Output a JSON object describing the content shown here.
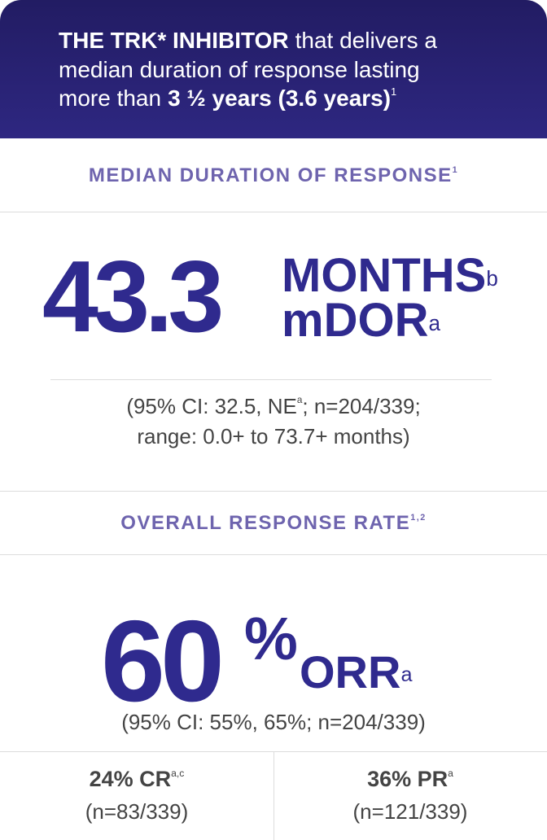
{
  "header": {
    "line1_bold": "THE TRK* INHIBITOR",
    "line1_text": "that delivers a",
    "line2": "median duration of response lasting",
    "line3_text": "more than",
    "line3_bold": "3 ½ years (3.6 years)",
    "line3_sup": "1"
  },
  "dor": {
    "title": "MEDIAN DURATION OF RESPONSE",
    "title_sup": "1",
    "value": "43.3",
    "unit": "MONTHS",
    "unit_sup": "b",
    "label": "mDOR",
    "label_sup": "a",
    "detail1_a": "(95% CI: 32.5, NE",
    "detail1_sup": "a",
    "detail1_b": "; n=204/339;",
    "detail2": "range: 0.0+ to 73.7+ months)"
  },
  "orr": {
    "title": "OVERALL RESPONSE RATE",
    "title_sup": "1,2",
    "value": "60",
    "percent": "%",
    "label": "ORR",
    "label_sup": "a",
    "detail": "(95% CI: 55%, 65%; n=204/339)"
  },
  "breakdown": [
    {
      "label": "24% CR",
      "sup": "a,c",
      "detail": "(n=83/339)"
    },
    {
      "label": "36% PR",
      "sup": "a",
      "detail": "(n=121/339)"
    }
  ]
}
